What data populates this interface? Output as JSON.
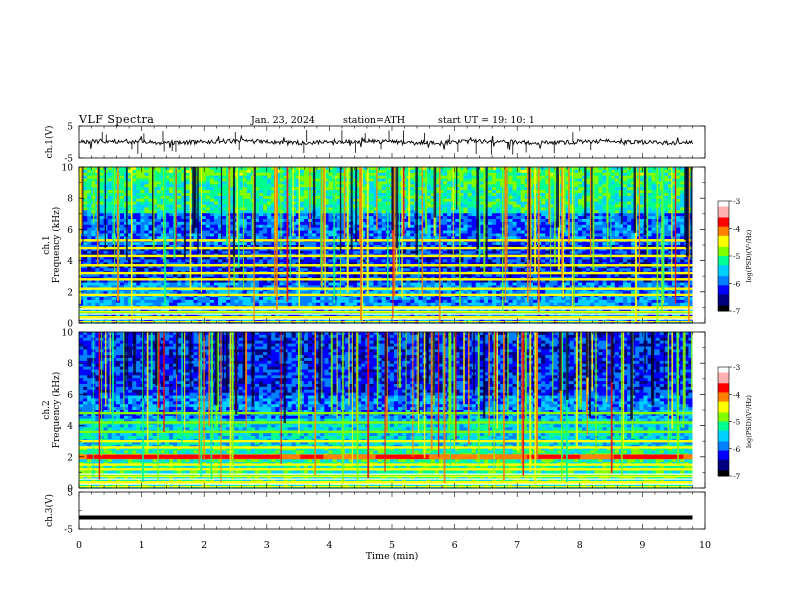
{
  "header": {
    "title": "VLF  Spectra",
    "date": "Jan. 23, 2024",
    "station": "station=ATH",
    "start": "start  UT  =   19: 10: 1"
  },
  "chart_data": [
    {
      "type": "line",
      "panel": "ch1-waveform",
      "ylabel": "ch.1(V)",
      "ylim": [
        -5,
        5
      ],
      "y_ticks": [
        "5",
        "-5"
      ],
      "xlim": [
        0,
        10
      ],
      "trace_level": 0,
      "trace_noise": 0.7,
      "trace_end_x": 9.8,
      "color": "#000000"
    },
    {
      "type": "heatmap",
      "panel": "ch1-spectrogram",
      "ylabel_top": "ch.1",
      "ylabel": "Frequency  (kHz)",
      "ylim": [
        0,
        10
      ],
      "y_ticks": [
        "0",
        "2",
        "4",
        "6",
        "8",
        "10"
      ],
      "xlim": [
        0,
        10
      ],
      "data_end_x": 9.8,
      "colorbar": {
        "label": "log(PSD)(V²/Hz)",
        "range": [
          -7,
          -3
        ],
        "ticks": [
          "-3",
          "-4",
          "-5",
          "-6",
          "-7"
        ]
      },
      "bands_khz": [
        0.3,
        0.7,
        1.0,
        1.8,
        2.2,
        2.8,
        3.2,
        3.7,
        4.3,
        4.8,
        5.3
      ]
    },
    {
      "type": "heatmap",
      "panel": "ch2-spectrogram",
      "ylabel_top": "ch.2",
      "ylabel": "Frequency  (kHz)",
      "ylim": [
        0,
        10
      ],
      "y_ticks": [
        "0",
        "2",
        "4",
        "6",
        "8",
        "10"
      ],
      "xlim": [
        0,
        10
      ],
      "data_end_x": 9.8,
      "colorbar": {
        "label": "log(PSD)(V²/Hz)",
        "range": [
          -7,
          -3
        ],
        "ticks": [
          "-3",
          "-4",
          "-5",
          "-6",
          "-7"
        ]
      },
      "bands_khz": [
        0.3,
        0.8,
        1.2,
        1.5,
        2.0,
        2.6,
        3.0,
        3.6,
        4.2,
        4.8
      ],
      "strong_band_khz": 2.0
    },
    {
      "type": "line",
      "panel": "ch3-waveform",
      "ylabel": "ch.3(V)",
      "ylim": [
        -5,
        5
      ],
      "y_ticks": [
        "5",
        "-5"
      ],
      "xlim": [
        0,
        10
      ],
      "trace_level": -1.9,
      "trace_end_x": 9.8,
      "color": "#000000"
    }
  ],
  "x_axis": {
    "label": "Time  (min)",
    "ticks": [
      "0",
      "1",
      "2",
      "3",
      "4",
      "5",
      "6",
      "7",
      "8",
      "9",
      "10"
    ]
  },
  "colormap": [
    "#000000",
    "#00007f",
    "#0000ff",
    "#0080ff",
    "#00d0ff",
    "#00ff90",
    "#80ff00",
    "#ffff00",
    "#ff8000",
    "#ff0000",
    "#ffb0b0",
    "#ffffff"
  ]
}
